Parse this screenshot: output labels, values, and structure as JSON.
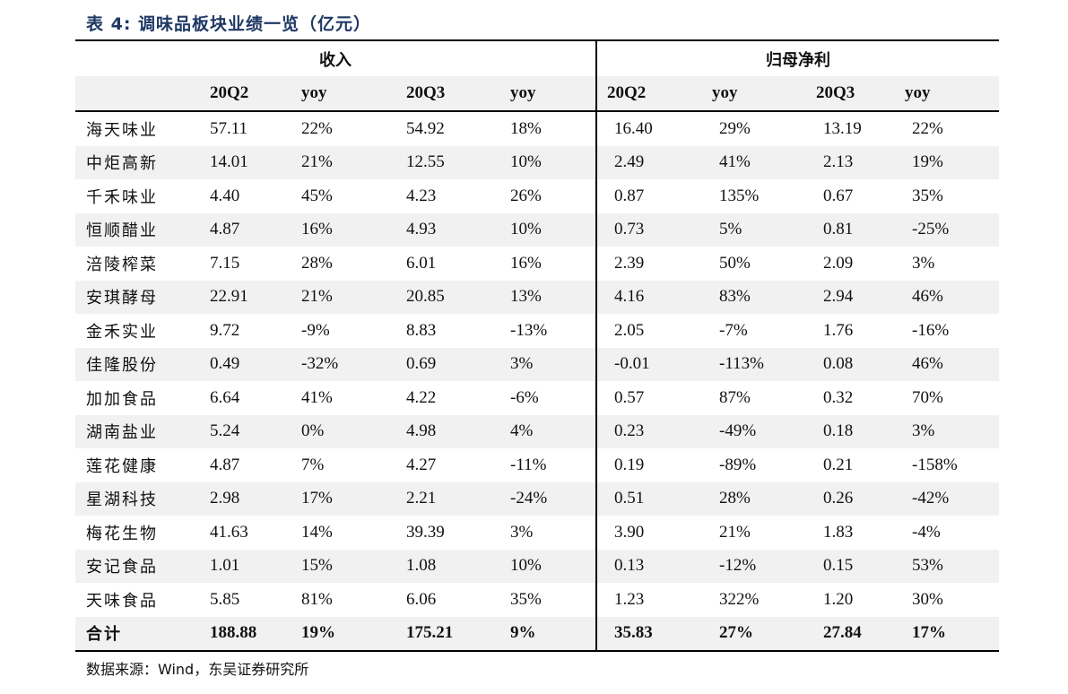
{
  "title": "表 4:  调味品板块业绩一览（亿元）",
  "groups": {
    "revenue": "收入",
    "net_profit": "归母净利"
  },
  "columns": [
    "20Q2",
    "yoy",
    "20Q3",
    "yoy",
    "20Q2",
    "yoy",
    "20Q3",
    "yoy"
  ],
  "rows": [
    [
      "海天味业",
      "57.11",
      "22%",
      "54.92",
      "18%",
      "16.40",
      "29%",
      "13.19",
      "22%"
    ],
    [
      "中炬高新",
      "14.01",
      "21%",
      "12.55",
      "10%",
      "2.49",
      "41%",
      "2.13",
      "19%"
    ],
    [
      "千禾味业",
      "4.40",
      "45%",
      "4.23",
      "26%",
      "0.87",
      "135%",
      "0.67",
      "35%"
    ],
    [
      "恒顺醋业",
      "4.87",
      "16%",
      "4.93",
      "10%",
      "0.73",
      "5%",
      "0.81",
      "-25%"
    ],
    [
      "涪陵榨菜",
      "7.15",
      "28%",
      "6.01",
      "16%",
      "2.39",
      "50%",
      "2.09",
      "3%"
    ],
    [
      "安琪酵母",
      "22.91",
      "21%",
      "20.85",
      "13%",
      "4.16",
      "83%",
      "2.94",
      "46%"
    ],
    [
      "金禾实业",
      "9.72",
      "-9%",
      "8.83",
      "-13%",
      "2.05",
      "-7%",
      "1.76",
      "-16%"
    ],
    [
      "佳隆股份",
      "0.49",
      "-32%",
      "0.69",
      "3%",
      "-0.01",
      "-113%",
      "0.08",
      "46%"
    ],
    [
      "加加食品",
      "6.64",
      "41%",
      "4.22",
      "-6%",
      "0.57",
      "87%",
      "0.32",
      "70%"
    ],
    [
      "湖南盐业",
      "5.24",
      "0%",
      "4.98",
      "4%",
      "0.23",
      "-49%",
      "0.18",
      "3%"
    ],
    [
      "莲花健康",
      "4.87",
      "7%",
      "4.27",
      "-11%",
      "0.19",
      "-89%",
      "0.21",
      "-158%"
    ],
    [
      "星湖科技",
      "2.98",
      "17%",
      "2.21",
      "-24%",
      "0.51",
      "28%",
      "0.26",
      "-42%"
    ],
    [
      "梅花生物",
      "41.63",
      "14%",
      "39.39",
      "3%",
      "3.90",
      "21%",
      "1.83",
      "-4%"
    ],
    [
      "安记食品",
      "1.01",
      "15%",
      "1.08",
      "10%",
      "0.13",
      "-12%",
      "0.15",
      "53%"
    ],
    [
      "天味食品",
      "5.85",
      "81%",
      "6.06",
      "35%",
      "1.23",
      "322%",
      "1.20",
      "30%"
    ]
  ],
  "total": [
    "合计",
    "188.88",
    "19%",
    "175.21",
    "9%",
    "35.83",
    "27%",
    "27.84",
    "17%"
  ],
  "source": "数据来源：Wind，东吴证券研究所"
}
